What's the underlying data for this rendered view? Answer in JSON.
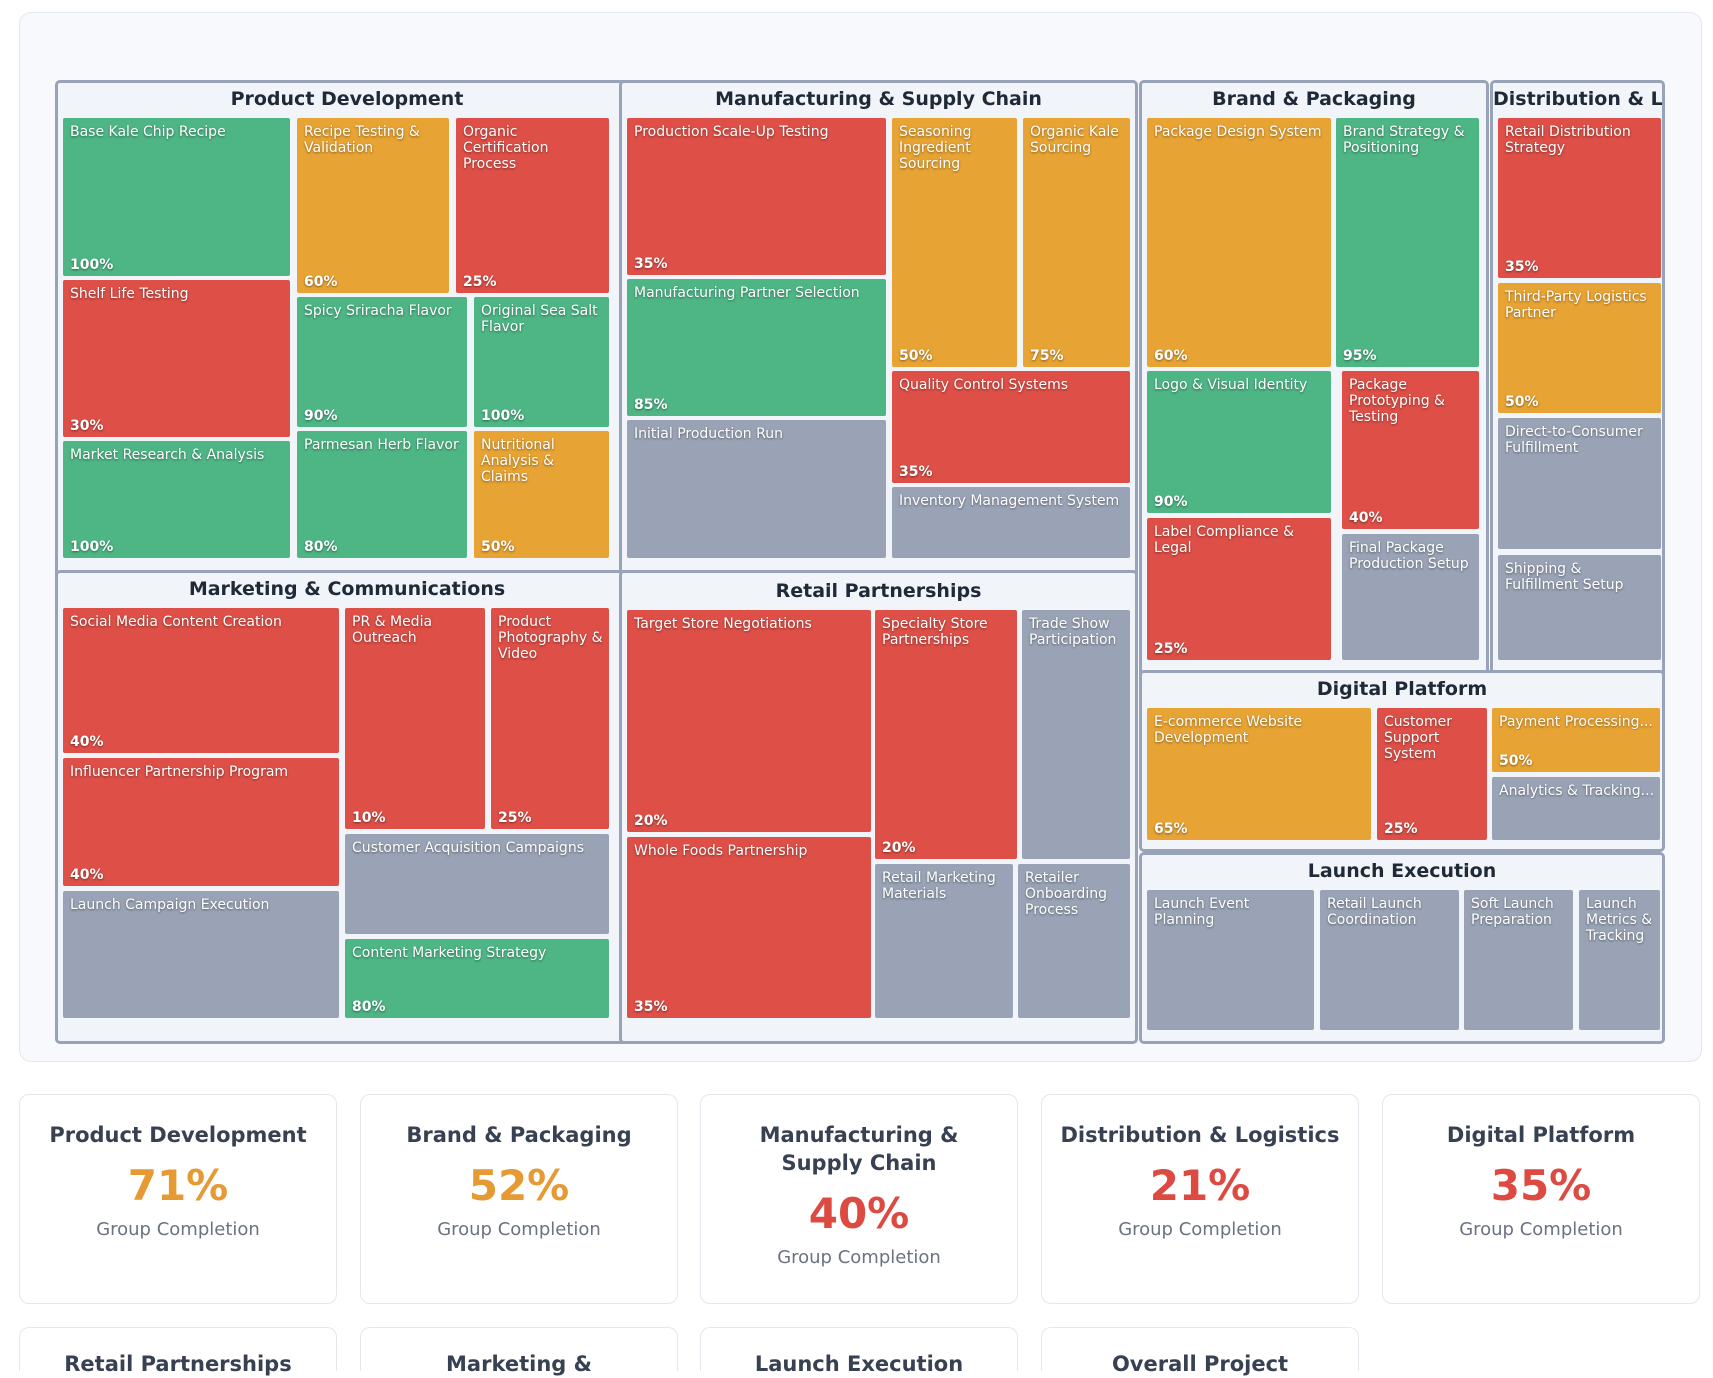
{
  "colors": {
    "green": "#4eb585",
    "orange": "#e7a333",
    "red": "#dd4f47",
    "gray": "#99a3b5"
  },
  "treemap": {
    "product_development": {
      "title": "Product Development",
      "tiles": [
        {
          "name": "Base Kale Chip Recipe",
          "pct": "100%"
        },
        {
          "name": "Recipe Testing & Validation",
          "pct": "60%"
        },
        {
          "name": "Organic Certification Process",
          "pct": "25%"
        },
        {
          "name": "Shelf Life Testing",
          "pct": "30%"
        },
        {
          "name": "Spicy Sriracha Flavor",
          "pct": "90%"
        },
        {
          "name": "Original Sea Salt Flavor",
          "pct": "100%"
        },
        {
          "name": "Market Research & Analysis",
          "pct": "100%"
        },
        {
          "name": "Parmesan Herb Flavor",
          "pct": "80%"
        },
        {
          "name": "Nutritional Analysis & Claims",
          "pct": "50%"
        }
      ]
    },
    "manufacturing": {
      "title": "Manufacturing & Supply Chain",
      "tiles": [
        {
          "name": "Production Scale-Up Testing",
          "pct": "35%"
        },
        {
          "name": "Seasoning Ingredient Sourcing",
          "pct": "50%"
        },
        {
          "name": "Organic Kale Sourcing",
          "pct": "75%"
        },
        {
          "name": "Manufacturing Partner Selection",
          "pct": "85%"
        },
        {
          "name": "Quality Control Systems",
          "pct": "35%"
        },
        {
          "name": "Initial Production Run"
        },
        {
          "name": "Inventory Management System"
        }
      ]
    },
    "brand_packaging": {
      "title": "Brand & Packaging",
      "tiles": [
        {
          "name": "Package Design System",
          "pct": "60%"
        },
        {
          "name": "Brand Strategy & Positioning",
          "pct": "95%"
        },
        {
          "name": "Logo & Visual Identity",
          "pct": "90%"
        },
        {
          "name": "Package Prototyping & Testing",
          "pct": "40%"
        },
        {
          "name": "Label Compliance & Legal",
          "pct": "25%"
        },
        {
          "name": "Final Package Production Setup"
        }
      ]
    },
    "distribution": {
      "title": "Distribution & Logistics",
      "tiles": [
        {
          "name": "Retail Distribution Strategy",
          "pct": "35%"
        },
        {
          "name": "Third-Party Logistics Partner",
          "pct": "50%"
        },
        {
          "name": "Direct-to-Consumer Fulfillment"
        },
        {
          "name": "Shipping & Fulfillment Setup"
        }
      ]
    },
    "marketing": {
      "title": "Marketing & Communications",
      "tiles": [
        {
          "name": "Social Media Content Creation",
          "pct": "40%"
        },
        {
          "name": "PR & Media Outreach",
          "pct": "10%"
        },
        {
          "name": "Product Photography & Video",
          "pct": "25%"
        },
        {
          "name": "Influencer Partnership Program",
          "pct": "40%"
        },
        {
          "name": "Customer Acquisition Campaigns"
        },
        {
          "name": "Launch Campaign Execution"
        },
        {
          "name": "Content Marketing Strategy",
          "pct": "80%"
        }
      ]
    },
    "retail": {
      "title": "Retail Partnerships",
      "tiles": [
        {
          "name": "Target Store Negotiations",
          "pct": "20%"
        },
        {
          "name": "Specialty Store Partnerships",
          "pct": "20%"
        },
        {
          "name": "Trade Show Participation"
        },
        {
          "name": "Whole Foods Partnership",
          "pct": "35%"
        },
        {
          "name": "Retail Marketing Materials"
        },
        {
          "name": "Retailer Onboarding Process"
        }
      ]
    },
    "digital": {
      "title": "Digital Platform",
      "tiles": [
        {
          "name": "E-commerce Website Development",
          "pct": "65%"
        },
        {
          "name": "Customer Support System",
          "pct": "25%"
        },
        {
          "name": "Payment Processing...",
          "pct": "50%"
        },
        {
          "name": "Analytics & Tracking..."
        }
      ]
    },
    "launch": {
      "title": "Launch Execution",
      "tiles": [
        {
          "name": "Launch Event Planning"
        },
        {
          "name": "Retail Launch Coordination"
        },
        {
          "name": "Soft Launch Preparation"
        },
        {
          "name": "Launch Metrics & Tracking"
        }
      ]
    }
  },
  "cards": [
    {
      "title": "Product Development",
      "value": "71%",
      "label": "Group Completion"
    },
    {
      "title": "Brand & Packaging",
      "value": "52%",
      "label": "Group Completion"
    },
    {
      "title": "Manufacturing & Supply Chain",
      "value": "40%",
      "label": "Group Completion"
    },
    {
      "title": "Distribution & Logistics",
      "value": "21%",
      "label": "Group Completion"
    },
    {
      "title": "Digital Platform",
      "value": "35%",
      "label": "Group Completion"
    },
    {
      "title": "Retail Partnerships"
    },
    {
      "title": "Marketing &"
    },
    {
      "title": "Launch Execution"
    },
    {
      "title": "Overall Project"
    }
  ]
}
